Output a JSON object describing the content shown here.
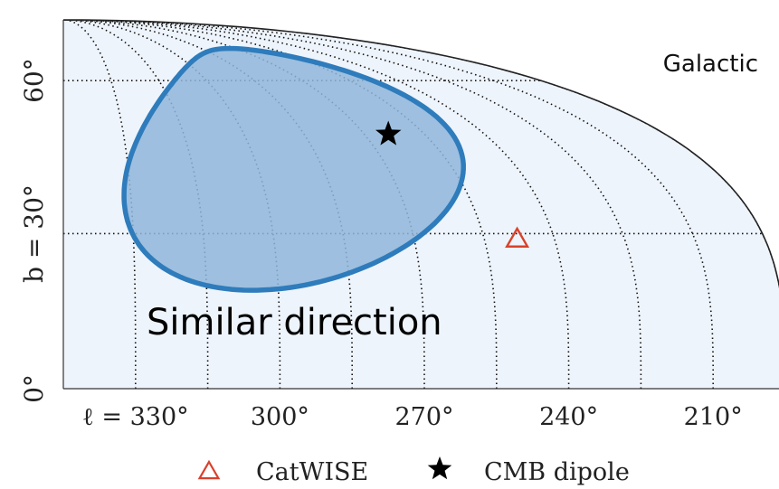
{
  "chart_data": {
    "type": "scatter",
    "projection": "galactic-sky-quadrant",
    "frame_label": "Galactic",
    "annotation": "Similar direction",
    "x_axis": {
      "quantity": "galactic longitude",
      "unit": "deg",
      "reversed": true,
      "ticks": [
        330,
        300,
        270,
        240,
        210
      ],
      "tick_labels": [
        "ℓ = 330°",
        "300°",
        "270°",
        "240°",
        "210°"
      ],
      "range": [
        345,
        195
      ]
    },
    "y_axis": {
      "quantity": "galactic latitude",
      "unit": "deg",
      "ticks": [
        0,
        30,
        60
      ],
      "tick_labels": [
        "0°",
        "b = 30°",
        "60°"
      ],
      "range": [
        0,
        90
      ]
    },
    "grid": true,
    "meridians_deg": [
      195,
      210,
      225,
      240,
      255,
      270,
      285,
      300,
      315,
      330
    ],
    "parallels_deg": [
      30,
      60
    ],
    "confidence_region": {
      "fill": "#8fb5d9",
      "edge": "#2e7cbc",
      "center_l": 289,
      "center_b": 45,
      "semi_axis_l": 44,
      "semi_axis_b": 22,
      "tilt_deg": -17
    },
    "points": [
      {
        "name": "CatWISE",
        "l": 248,
        "b": 29,
        "marker": "triangle-open",
        "color": "#d9412c"
      },
      {
        "name": "CMB dipole",
        "l": 264,
        "b": 48,
        "marker": "star",
        "color": "#000000"
      }
    ],
    "legend": {
      "position": "bottom",
      "entries": [
        {
          "label": "CatWISE",
          "marker": "triangle-open",
          "color": "#d9412c"
        },
        {
          "label": "CMB dipole",
          "marker": "star",
          "color": "#000000"
        }
      ]
    },
    "colors": {
      "sky_background": "#eef4fb",
      "grid": "#111111",
      "boundary": "#222222"
    }
  }
}
